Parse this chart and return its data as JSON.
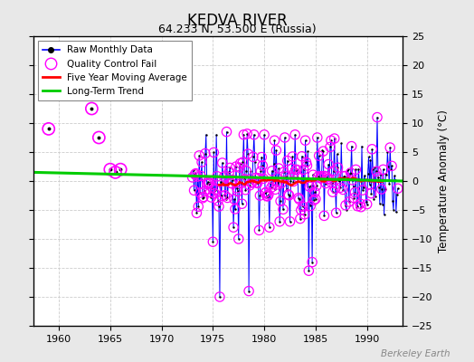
{
  "title": "KEDVA RIVER",
  "subtitle": "64.233 N, 53.500 E (Russia)",
  "ylabel_right": "Temperature Anomaly (°C)",
  "watermark": "Berkeley Earth",
  "xlim": [
    1957.5,
    1993.5
  ],
  "ylim": [
    -25,
    25
  ],
  "yticks": [
    -25,
    -20,
    -15,
    -10,
    -5,
    0,
    5,
    10,
    15,
    20,
    25
  ],
  "xticks": [
    1960,
    1965,
    1970,
    1975,
    1980,
    1985,
    1990
  ],
  "bg_color": "#ffffff",
  "fig_color": "#e8e8e8",
  "raw_color": "#0000ff",
  "dot_color": "#000000",
  "qc_color": "#ff00ff",
  "ma_color": "#ff0000",
  "trend_color": "#00cc00",
  "grid_color": "#cccccc",
  "legend_labels": [
    "Raw Monthly Data",
    "Quality Control Fail",
    "Five Year Moving Average",
    "Long-Term Trend"
  ]
}
